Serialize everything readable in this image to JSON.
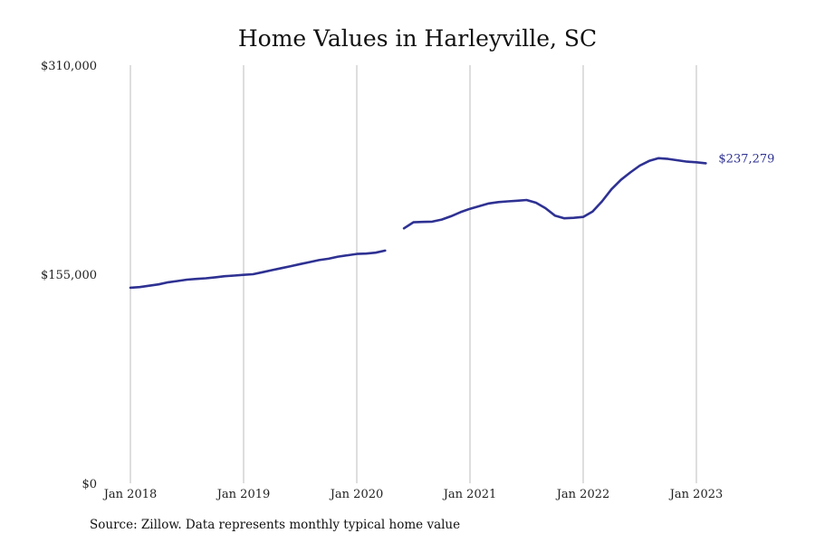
{
  "chart_data": {
    "type": "line",
    "title": "Home Values in Harleyville, SC",
    "xlabel": "",
    "ylabel": "",
    "x_tick_labels": [
      "Jan 2018",
      "Jan 2019",
      "Jan 2020",
      "Jan 2021",
      "Jan 2022",
      "Jan 2023"
    ],
    "y_tick_labels": [
      "$0",
      "$155,000",
      "$310,000"
    ],
    "y_ticks": [
      0,
      155000,
      310000
    ],
    "ylim": [
      0,
      310000
    ],
    "xlim": [
      "2018-01",
      "2023-02"
    ],
    "grid": "vertical lines at x ticks",
    "series": [
      {
        "color": "#2e3192",
        "points": [
          [
            "2018-01",
            145000
          ],
          [
            "2018-02",
            145500
          ],
          [
            "2018-03",
            146500
          ],
          [
            "2018-04",
            147500
          ],
          [
            "2018-05",
            149000
          ],
          [
            "2018-06",
            150000
          ],
          [
            "2018-07",
            151000
          ],
          [
            "2018-08",
            151500
          ],
          [
            "2018-09",
            152000
          ],
          [
            "2018-10",
            152700
          ],
          [
            "2018-11",
            153500
          ],
          [
            "2018-12",
            154000
          ],
          [
            "2019-01",
            154500
          ],
          [
            "2019-02",
            155000
          ],
          [
            "2019-03",
            156500
          ],
          [
            "2019-04",
            158000
          ],
          [
            "2019-05",
            159500
          ],
          [
            "2019-06",
            161000
          ],
          [
            "2019-07",
            162500
          ],
          [
            "2019-08",
            164000
          ],
          [
            "2019-09",
            165500
          ],
          [
            "2019-10",
            166500
          ],
          [
            "2019-11",
            168000
          ],
          [
            "2019-12",
            169000
          ],
          [
            "2020-01",
            170000
          ],
          [
            "2020-02",
            170300
          ],
          [
            "2020-03",
            171000
          ],
          [
            "2020-04",
            172500
          ],
          null,
          [
            "2020-06",
            189000
          ],
          [
            "2020-07",
            193500
          ],
          [
            "2020-08",
            193800
          ],
          [
            "2020-09",
            194000
          ],
          [
            "2020-10",
            195500
          ],
          [
            "2020-11",
            198000
          ],
          [
            "2020-12",
            201000
          ],
          [
            "2021-01",
            203500
          ],
          [
            "2021-02",
            205500
          ],
          [
            "2021-03",
            207500
          ],
          [
            "2021-04",
            208500
          ],
          [
            "2021-05",
            209000
          ],
          [
            "2021-06",
            209500
          ],
          [
            "2021-07",
            210000
          ],
          [
            "2021-08",
            208000
          ],
          [
            "2021-09",
            204000
          ],
          [
            "2021-10",
            198500
          ],
          [
            "2021-11",
            196500
          ],
          [
            "2021-12",
            196800
          ],
          [
            "2022-01",
            197500
          ],
          [
            "2022-02",
            201500
          ],
          [
            "2022-03",
            209000
          ],
          [
            "2022-04",
            218000
          ],
          [
            "2022-05",
            225000
          ],
          [
            "2022-06",
            230500
          ],
          [
            "2022-07",
            235500
          ],
          [
            "2022-08",
            239000
          ],
          [
            "2022-09",
            241000
          ],
          [
            "2022-10",
            240500
          ],
          [
            "2022-11",
            239500
          ],
          [
            "2022-12",
            238500
          ],
          [
            "2023-01",
            238000
          ],
          [
            "2023-02",
            237279
          ]
        ],
        "end_label": "$237,279"
      }
    ]
  },
  "footer": {
    "source": "Source: Zillow. Data represents monthly typical home value"
  }
}
